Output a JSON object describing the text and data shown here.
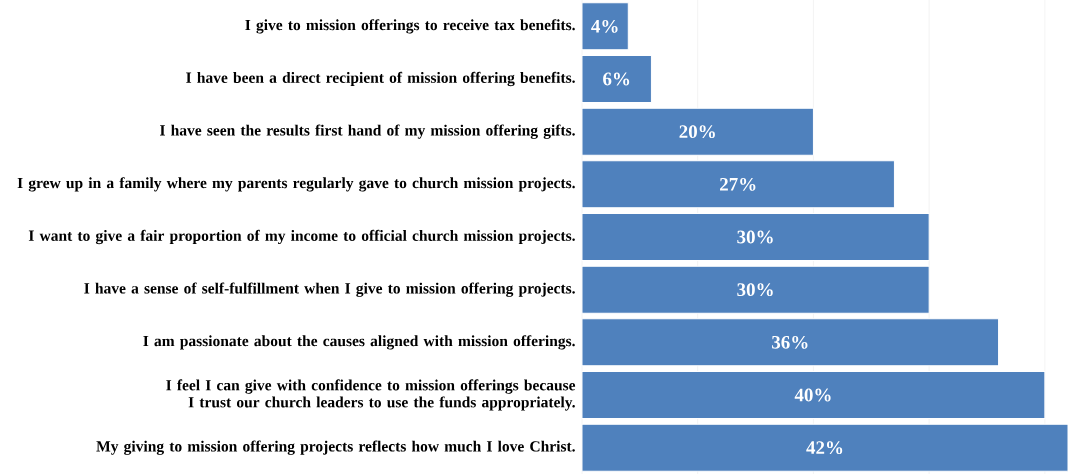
{
  "chart_data": {
    "type": "bar",
    "orientation": "horizontal",
    "categories": [
      "I give to mission offerings to receive tax benefits.",
      "I have been a direct recipient of mission offering benefits.",
      "I have seen the results first hand of my mission offering gifts.",
      "I grew up in a family where my parents regularly gave to church mission projects.",
      "I want to give a fair proportion of my income to official church mission projects.",
      "I have a sense of self-fulfillment when I give to mission offering projects.",
      "I am passionate about the causes aligned with mission offerings.",
      "I feel I can give with confidence to mission offerings because I trust our church leaders to use the funds appropriately.",
      "My giving to mission offering projects reflects how much I love Christ."
    ],
    "values": [
      4,
      6,
      20,
      27,
      30,
      30,
      36,
      40,
      42
    ],
    "value_labels": [
      "4%",
      "6%",
      "20%",
      "27%",
      "30%",
      "30%",
      "36%",
      "40%",
      "42%"
    ],
    "color": "#4f81bd",
    "xlim": [
      0,
      42
    ],
    "xticks": [
      {
        "value": 0,
        "label": null
      },
      {
        "value": 10,
        "label": null
      },
      {
        "value": 20,
        "label": null
      },
      {
        "value": 30,
        "label": null
      },
      {
        "value": 40,
        "label": null
      }
    ],
    "grid": "x",
    "tick_labels": "y"
  }
}
